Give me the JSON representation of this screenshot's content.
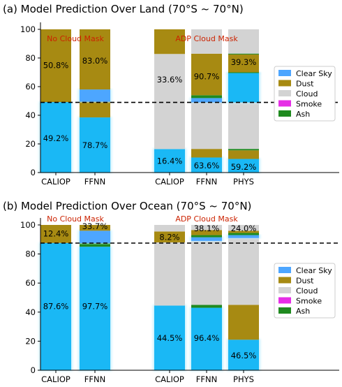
{
  "legend_labels": [
    "Clear Sky",
    "Dust",
    "Cloud",
    "Smoke",
    "Ash"
  ],
  "colors": {
    "clear_sky": "#1ab8f5",
    "clear_sky_bright": "#4da6ff",
    "clear_sky_glow": "#bfefff",
    "dust": "#a78a12",
    "cloud": "#d3d3d3",
    "smoke": "#e62ee6",
    "ash": "#1f8a1f",
    "note_red": "#cc2200",
    "threshold_line": "#000000"
  },
  "chart_data": [
    {
      "type": "bar",
      "title": "(a) Model Prediction Over Land (70°S ~ 70°N)",
      "ylim": [
        0,
        100
      ],
      "yticks": [
        0,
        20,
        40,
        60,
        80,
        100
      ],
      "threshold": 49,
      "groups": [
        {
          "label": "No Cloud Mask",
          "categories": [
            "CALIOP",
            "FFNN"
          ]
        },
        {
          "label": "ADP Cloud Mask",
          "categories": [
            "CALIOP",
            "FFNN",
            "PHYS"
          ]
        }
      ],
      "bars": [
        {
          "category": "CALIOP",
          "group": "No Cloud Mask",
          "segments": [
            {
              "type": "clear_sky",
              "value": 49.2
            },
            {
              "type": "dust",
              "value": 50.8
            }
          ],
          "labels": [
            {
              "text": "49.2%",
              "y": 24
            },
            {
              "text": "50.8%",
              "y": 75
            }
          ]
        },
        {
          "category": "FFNN",
          "group": "No Cloud Mask",
          "segments": [
            {
              "type": "clear_sky",
              "value": 38.5
            },
            {
              "type": "dust",
              "value": 11
            },
            {
              "type": "clear_sky_bright",
              "value": 8.5
            },
            {
              "type": "dust",
              "value": 42
            }
          ],
          "labels": [
            {
              "text": "78.7%",
              "y": 19
            },
            {
              "text": "83.0%",
              "y": 78
            }
          ]
        },
        {
          "category": "CALIOP",
          "group": "ADP Cloud Mask",
          "segments": [
            {
              "type": "clear_sky",
              "value": 16.4
            },
            {
              "type": "cloud",
              "value": 66.4
            },
            {
              "type": "dust",
              "value": 17.2
            }
          ],
          "labels": [
            {
              "text": "16.4%",
              "y": 8
            },
            {
              "text": "33.6%",
              "y": 65
            }
          ]
        },
        {
          "category": "FFNN",
          "group": "ADP Cloud Mask",
          "segments": [
            {
              "type": "clear_sky",
              "value": 10.5
            },
            {
              "type": "dust",
              "value": 6
            },
            {
              "type": "cloud",
              "value": 32.5
            },
            {
              "type": "clear_sky_bright",
              "value": 3
            },
            {
              "type": "ash",
              "value": 2
            },
            {
              "type": "dust",
              "value": 29
            },
            {
              "type": "cloud",
              "value": 17
            }
          ],
          "labels": [
            {
              "text": "63.6%",
              "y": 5
            },
            {
              "text": "90.7%",
              "y": 67
            }
          ]
        },
        {
          "category": "PHYS",
          "group": "ADP Cloud Mask",
          "segments": [
            {
              "type": "clear_sky",
              "value": 9.5
            },
            {
              "type": "dust",
              "value": 6
            },
            {
              "type": "ash",
              "value": 1
            },
            {
              "type": "cloud",
              "value": 52.5
            },
            {
              "type": "clear_sky_bright",
              "value": 0.5
            },
            {
              "type": "clear_sky",
              "value": 0
            },
            {
              "type": "ash",
              "value": 0
            },
            {
              "type": "dust",
              "value": 0
            },
            {
              "type": "clear_sky",
              "value": 0
            },
            {
              "type": "clear_sky",
              "value": 0
            }
          ],
          "overrides": [
            {
              "type": "clear_sky",
              "from": 9.5,
              "to": 69.5,
              "skip": true
            }
          ],
          "labels": [
            {
              "text": "59.2%",
              "y": 4
            },
            {
              "text": "39.3%",
              "y": 77
            }
          ]
        }
      ]
    },
    {
      "type": "bar",
      "title": "(b) Model Prediction Over Ocean (70°S ~ 70°N)",
      "ylim": [
        0,
        100
      ],
      "yticks": [
        0,
        20,
        40,
        60,
        80,
        100
      ],
      "threshold": 87.5,
      "groups": [
        {
          "label": "No Cloud Mask",
          "categories": [
            "CALIOP",
            "FFNN"
          ]
        },
        {
          "label": "ADP Cloud Mask",
          "categories": [
            "CALIOP",
            "FFNN",
            "PHYS"
          ]
        }
      ],
      "bars": [
        {
          "category": "CALIOP",
          "group": "No Cloud Mask",
          "segments": [
            {
              "type": "clear_sky",
              "value": 87.6
            },
            {
              "type": "dust",
              "value": 12.4
            }
          ],
          "labels": [
            {
              "text": "87.6%",
              "y": 44
            },
            {
              "text": "12.4%",
              "y": 94
            }
          ]
        },
        {
          "category": "FFNN",
          "group": "No Cloud Mask",
          "segments": [
            {
              "type": "clear_sky",
              "value": 85
            },
            {
              "type": "ash",
              "value": 2.5
            },
            {
              "type": "clear_sky_bright",
              "value": 8.5
            },
            {
              "type": "dust",
              "value": 4
            }
          ],
          "labels": [
            {
              "text": "97.7%",
              "y": 44
            },
            {
              "text": "33.7%",
              "y": 99
            }
          ]
        },
        {
          "category": "CALIOP",
          "group": "ADP Cloud Mask",
          "segments": [
            {
              "type": "clear_sky",
              "value": 44.5
            },
            {
              "type": "cloud",
              "value": 43.5
            },
            {
              "type": "dust",
              "value": 7.5
            },
            {
              "type": "cloud",
              "value": 4.5
            }
          ],
          "labels": [
            {
              "text": "44.5%",
              "y": 22
            },
            {
              "text": "8.2%",
              "y": 91.5
            }
          ]
        },
        {
          "category": "FFNN",
          "group": "ADP Cloud Mask",
          "segments": [
            {
              "type": "clear_sky",
              "value": 43
            },
            {
              "type": "ash",
              "value": 2
            },
            {
              "type": "cloud",
              "value": 44
            },
            {
              "type": "clear_sky_bright",
              "value": 2.5
            },
            {
              "type": "ash",
              "value": 1.5
            },
            {
              "type": "dust",
              "value": 3.5
            },
            {
              "type": "cloud",
              "value": 3.5
            }
          ],
          "labels": [
            {
              "text": "96.4%",
              "y": 22
            },
            {
              "text": "38.1%",
              "y": 97.5
            }
          ]
        },
        {
          "category": "PHYS",
          "group": "ADP Cloud Mask",
          "segments": [
            {
              "type": "clear_sky",
              "value": 21
            },
            {
              "type": "dust",
              "value": 24
            },
            {
              "type": "cloud",
              "value": 46
            },
            {
              "type": "clear_sky_bright",
              "value": 2
            },
            {
              "type": "ash",
              "value": 1.5
            },
            {
              "type": "dust",
              "value": 1.5
            },
            {
              "type": "cloud",
              "value": 4
            }
          ],
          "labels": [
            {
              "text": "46.5%",
              "y": 10
            },
            {
              "text": "24.0%",
              "y": 97.5
            }
          ]
        }
      ]
    }
  ]
}
